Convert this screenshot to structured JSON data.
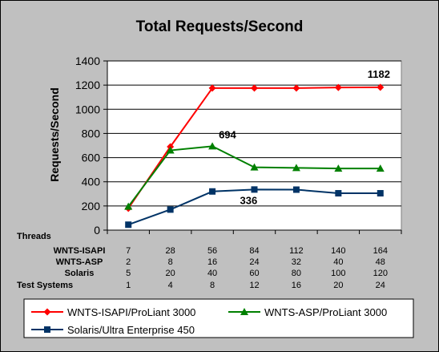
{
  "chart_data": {
    "type": "line",
    "title": "Total Requests/Second",
    "ylabel": "Requests/Second",
    "ylim": [
      0,
      1400
    ],
    "yticks": [
      0,
      200,
      400,
      600,
      800,
      1000,
      1200,
      1400
    ],
    "grid": true,
    "legend_position": "bottom",
    "series": [
      {
        "name": "WNTS-ISAPI/ProLiant 3000",
        "color": "#ff0000",
        "marker": "diamond",
        "values": [
          180,
          690,
          1175,
          1175,
          1175,
          1180,
          1182
        ]
      },
      {
        "name": "WNTS-ASP/ProLiant 3000",
        "color": "#008000",
        "marker": "triangle",
        "values": [
          195,
          660,
          694,
          520,
          515,
          510,
          510
        ]
      },
      {
        "name": "Solaris/Ultra Enterprise 450",
        "color": "#003366",
        "marker": "square",
        "values": [
          45,
          170,
          320,
          336,
          335,
          305,
          305
        ]
      }
    ],
    "annotations": [
      {
        "text": "1182",
        "series": 0,
        "point": 6
      },
      {
        "text": "694",
        "series": 1,
        "point": 2
      },
      {
        "text": "336",
        "series": 2,
        "point": 3
      }
    ],
    "table": {
      "header": "Threads",
      "rows": [
        {
          "label": "WNTS-ISAPI",
          "values": [
            "7",
            "28",
            "56",
            "84",
            "112",
            "140",
            "164"
          ]
        },
        {
          "label": "WNTS-ASP",
          "values": [
            "2",
            "8",
            "16",
            "24",
            "32",
            "40",
            "48"
          ]
        },
        {
          "label": "Solaris",
          "values": [
            "5",
            "20",
            "40",
            "60",
            "80",
            "100",
            "120"
          ]
        }
      ],
      "footer": {
        "label": "Test Systems",
        "values": [
          "1",
          "4",
          "8",
          "12",
          "16",
          "20",
          "24"
        ]
      }
    }
  }
}
